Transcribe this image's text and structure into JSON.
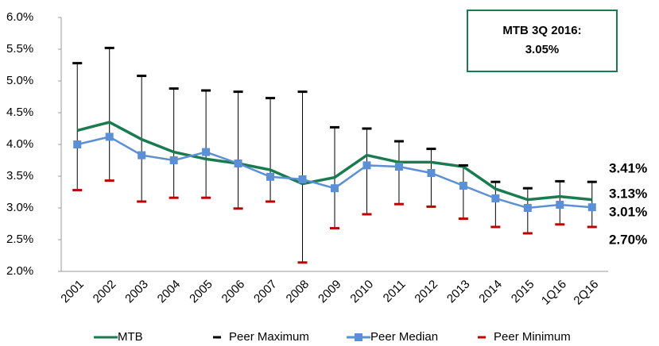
{
  "chart_data": {
    "type": "line",
    "categories": [
      "2001",
      "2002",
      "2003",
      "2004",
      "2005",
      "2006",
      "2007",
      "2008",
      "2009",
      "2010",
      "2011",
      "2012",
      "2013",
      "2014",
      "2015",
      "1Q16",
      "2Q16"
    ],
    "ylim": [
      2,
      6
    ],
    "yticks": [
      {
        "value": 2,
        "label": "2.0%"
      },
      {
        "value": 2.5,
        "label": "2.5%"
      },
      {
        "value": 3,
        "label": "3.0%"
      },
      {
        "value": 3.5,
        "label": "3.5%"
      },
      {
        "value": 4,
        "label": "4.0%"
      },
      {
        "value": 4.5,
        "label": "4.5%"
      },
      {
        "value": 5,
        "label": "5.0%"
      },
      {
        "value": 5.5,
        "label": "5.5%"
      },
      {
        "value": 6,
        "label": "6.0%"
      }
    ],
    "annotation": [
      "MTB 3Q 2016:",
      "3.05%"
    ],
    "series": [
      {
        "name": "MTB",
        "style": "line",
        "color": "#1a7a50",
        "values": [
          4.22,
          4.35,
          4.08,
          3.88,
          3.77,
          3.7,
          3.6,
          3.38,
          3.48,
          3.83,
          3.72,
          3.72,
          3.65,
          3.3,
          3.13,
          3.18,
          3.13
        ],
        "value_labels": [
          null,
          null,
          null,
          null,
          null,
          null,
          null,
          null,
          null,
          null,
          null,
          null,
          null,
          null,
          null,
          null,
          "3.13%"
        ]
      },
      {
        "name": "Peer Maximum",
        "style": "dash",
        "color": "#000000",
        "values": [
          5.28,
          5.52,
          5.08,
          4.88,
          4.85,
          4.83,
          4.73,
          4.83,
          4.27,
          4.25,
          4.05,
          3.93,
          3.67,
          3.41,
          3.31,
          3.42,
          3.41
        ],
        "value_labels": [
          null,
          null,
          null,
          null,
          null,
          null,
          null,
          null,
          null,
          null,
          null,
          null,
          null,
          null,
          null,
          null,
          "3.41%"
        ]
      },
      {
        "name": "Peer Median",
        "style": "line-square",
        "color": "#5b8fd6",
        "values": [
          4.0,
          4.12,
          3.83,
          3.75,
          3.88,
          3.7,
          3.49,
          3.45,
          3.31,
          3.67,
          3.65,
          3.55,
          3.35,
          3.15,
          3.0,
          3.05,
          3.01
        ],
        "value_labels": [
          null,
          null,
          null,
          null,
          null,
          null,
          null,
          null,
          null,
          null,
          null,
          null,
          null,
          null,
          null,
          null,
          "3.01%"
        ]
      },
      {
        "name": "Peer Minimum",
        "style": "dash",
        "color": "#c00000",
        "values": [
          3.28,
          3.43,
          3.1,
          3.16,
          3.16,
          2.99,
          3.1,
          2.14,
          2.68,
          2.9,
          3.06,
          3.02,
          2.83,
          2.7,
          2.6,
          2.74,
          2.7
        ],
        "value_labels": [
          null,
          null,
          null,
          null,
          null,
          null,
          null,
          null,
          null,
          null,
          null,
          null,
          null,
          null,
          null,
          null,
          "2.70%"
        ]
      }
    ]
  }
}
